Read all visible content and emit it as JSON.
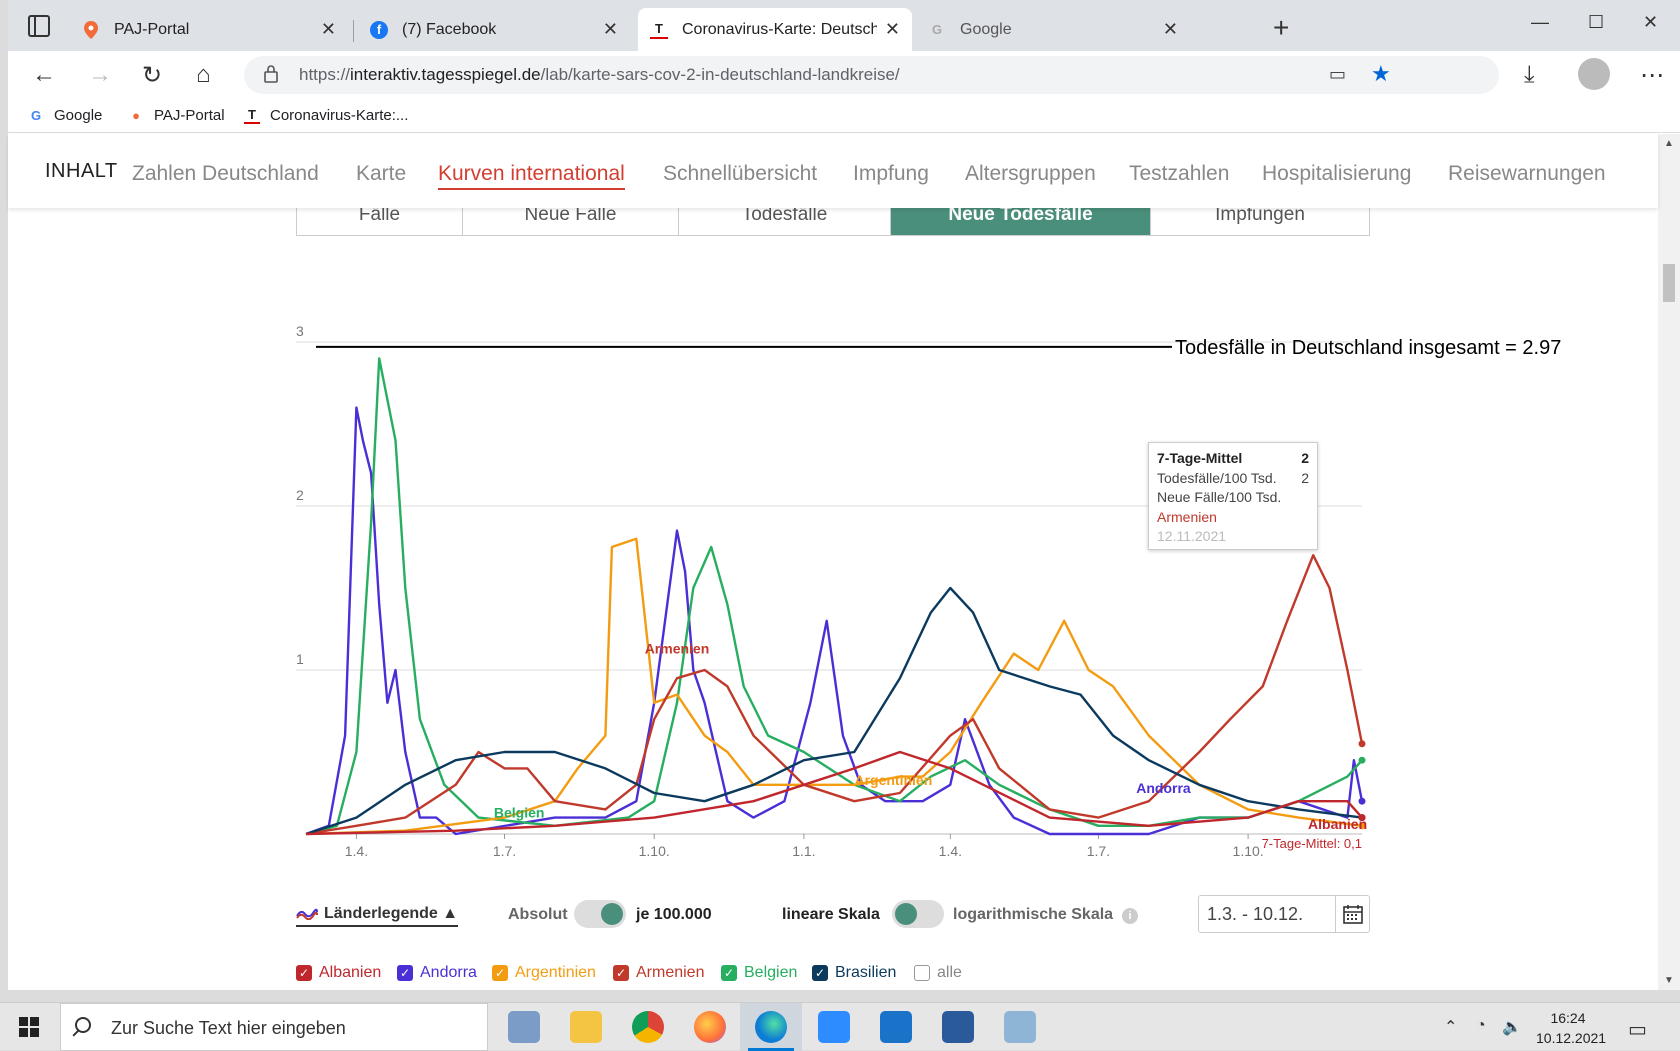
{
  "browser": {
    "tabs": [
      {
        "title": "PAJ-Portal",
        "icon": "map-pin-icon",
        "active": false
      },
      {
        "title": "(7) Facebook",
        "icon": "facebook-icon",
        "active": false
      },
      {
        "title": "Coronavirus-Karte: Deutschland",
        "icon": "tagesspiegel-icon",
        "active": true
      },
      {
        "title": "Google",
        "icon": "google-icon",
        "active": false
      }
    ],
    "url_prefix": "https://",
    "url_host": "interaktiv.tagesspiegel.de",
    "url_path": "/lab/karte-sars-cov-2-in-deutschland-landkreise/",
    "bookmarks": [
      "Google",
      "PAJ-Portal",
      "Coronavirus-Karte:..."
    ]
  },
  "site": {
    "nav_title": "INHALT",
    "nav_items": [
      "Zahlen Deutschland",
      "Karte",
      "Kurven international",
      "Schnellübersicht",
      "Impfung",
      "Altersgruppen",
      "Testzahlen",
      "Hospitalisierung",
      "Reisewarnungen"
    ],
    "active_nav": "Kurven international",
    "subtabs": [
      "Fälle",
      "Neue Fälle",
      "Todesfälle",
      "Neue Todesfälle",
      "Impfungen"
    ],
    "active_subtab": "Neue Todesfälle"
  },
  "tooltip": {
    "head_label": "7-Tage-Mittel",
    "head_value": "2",
    "row1_label": "Todesfälle/100 Tsd.",
    "row1_value": "2",
    "row2_label": "Neue Fälle/100 Tsd.",
    "country": "Armenien",
    "date": "12.11.2021"
  },
  "controls": {
    "legend_label": "Länderlegende ▲",
    "absolut": "Absolut",
    "je100000": "je 100.000",
    "linear": "lineare Skala",
    "log": "logarithmische Skala",
    "info": "i",
    "date_range": "1.3. - 10.12."
  },
  "countries": [
    {
      "name": "Albanien",
      "color": "#c0272d",
      "checked": true
    },
    {
      "name": "Andorra",
      "color": "#4b2fd6",
      "checked": true
    },
    {
      "name": "Argentinien",
      "color": "#f39c12",
      "checked": true
    },
    {
      "name": "Armenien",
      "color": "#c0392b",
      "checked": true
    },
    {
      "name": "Belgien",
      "color": "#27ae60",
      "checked": true
    },
    {
      "name": "Brasilien",
      "color": "#0b3a5e",
      "checked": true
    },
    {
      "name": "alle",
      "color": "#999999",
      "checked": false
    }
  ],
  "taskbar": {
    "search_placeholder": "Zur Suche Text hier eingeben",
    "time": "16:24",
    "date": "10.12.2021"
  },
  "chart_data": {
    "type": "line",
    "title": "",
    "xlabel": "",
    "ylabel": "",
    "ylim": [
      0,
      3
    ],
    "yticks": [
      1,
      2,
      3
    ],
    "xticks": [
      "1.4.",
      "1.7.",
      "1.10.",
      "1.1.",
      "1.4.",
      "1.7.",
      "1.10."
    ],
    "x_range": [
      "2020-03-01",
      "2021-12-10"
    ],
    "reference_line": {
      "label": "Todesfälle in Deutschland insgesamt = 2.97",
      "value": 2.97
    },
    "annotation": "7-Tage-Mittel: 0,1",
    "series_labels": [
      {
        "text": "Armenien",
        "series": "Armenien",
        "at": "2020-10-15",
        "y": 1.1
      },
      {
        "text": "Argentinien",
        "series": "Argentinien",
        "at": "2021-02-25",
        "y": 0.3
      },
      {
        "text": "Belgien",
        "series": "Belgien",
        "at": "2020-07-10",
        "y": 0.1
      },
      {
        "text": "Andorra",
        "series": "Andorra",
        "at": "2021-08-10",
        "y": 0.25
      },
      {
        "text": "Albanien",
        "series": "Albanien",
        "at": "2021-11-25",
        "y": 0.03
      }
    ],
    "series": [
      {
        "name": "Andorra",
        "color": "#4b2fd6",
        "x": [
          "2020-03-01",
          "2020-03-15",
          "2020-03-25",
          "2020-04-01",
          "2020-04-05",
          "2020-04-10",
          "2020-04-15",
          "2020-04-20",
          "2020-04-25",
          "2020-05-01",
          "2020-05-10",
          "2020-05-20",
          "2020-06-01",
          "2020-08-01",
          "2020-09-01",
          "2020-09-20",
          "2020-10-01",
          "2020-10-15",
          "2020-10-20",
          "2020-10-25",
          "2020-11-01",
          "2020-11-15",
          "2020-12-01",
          "2020-12-20",
          "2021-01-05",
          "2021-01-15",
          "2021-01-25",
          "2021-02-05",
          "2021-02-20",
          "2021-03-15",
          "2021-04-01",
          "2021-04-10",
          "2021-04-25",
          "2021-05-10",
          "2021-06-01",
          "2021-08-01",
          "2021-09-01",
          "2021-10-01",
          "2021-11-01",
          "2021-12-01",
          "2021-12-05",
          "2021-12-10"
        ],
        "y": [
          0,
          0.05,
          0.6,
          2.6,
          2.4,
          2.2,
          1.4,
          0.8,
          1.0,
          0.5,
          0.1,
          0.1,
          0,
          0.1,
          0.1,
          0.2,
          0.8,
          1.85,
          1.6,
          1.0,
          0.8,
          0.2,
          0.1,
          0.2,
          0.8,
          1.3,
          0.6,
          0.3,
          0.2,
          0.2,
          0.3,
          0.7,
          0.3,
          0.1,
          0,
          0,
          0.1,
          0.1,
          0.2,
          0.1,
          0.45,
          0.2
        ]
      },
      {
        "name": "Belgien",
        "color": "#27ae60",
        "x": [
          "2020-03-01",
          "2020-03-20",
          "2020-04-01",
          "2020-04-10",
          "2020-04-15",
          "2020-04-25",
          "2020-05-01",
          "2020-05-10",
          "2020-05-25",
          "2020-06-15",
          "2020-08-01",
          "2020-09-15",
          "2020-10-01",
          "2020-10-15",
          "2020-10-25",
          "2020-11-05",
          "2020-11-15",
          "2020-11-25",
          "2020-12-10",
          "2021-01-01",
          "2021-02-01",
          "2021-03-01",
          "2021-03-20",
          "2021-04-10",
          "2021-05-01",
          "2021-06-01",
          "2021-07-01",
          "2021-08-01",
          "2021-09-01",
          "2021-10-01",
          "2021-11-01",
          "2021-12-01",
          "2021-12-10"
        ],
        "y": [
          0,
          0.05,
          0.5,
          1.9,
          2.9,
          2.4,
          1.5,
          0.7,
          0.3,
          0.1,
          0.05,
          0.1,
          0.2,
          0.8,
          1.5,
          1.75,
          1.4,
          0.9,
          0.6,
          0.5,
          0.3,
          0.2,
          0.35,
          0.45,
          0.3,
          0.15,
          0.05,
          0.05,
          0.1,
          0.1,
          0.2,
          0.35,
          0.45
        ]
      },
      {
        "name": "Argentinien",
        "color": "#f39c12",
        "x": [
          "2020-03-01",
          "2020-05-01",
          "2020-07-01",
          "2020-08-01",
          "2020-08-15",
          "2020-09-01",
          "2020-09-05",
          "2020-09-20",
          "2020-10-01",
          "2020-10-15",
          "2020-11-01",
          "2020-11-15",
          "2020-12-01",
          "2020-12-15",
          "2021-01-01",
          "2021-02-01",
          "2021-03-01",
          "2021-03-15",
          "2021-04-01",
          "2021-04-20",
          "2021-05-10",
          "2021-05-25",
          "2021-06-10",
          "2021-06-25",
          "2021-07-10",
          "2021-08-01",
          "2021-09-01",
          "2021-10-01",
          "2021-11-01",
          "2021-12-10"
        ],
        "y": [
          0,
          0.02,
          0.1,
          0.2,
          0.4,
          0.6,
          1.75,
          1.8,
          0.8,
          0.85,
          0.6,
          0.5,
          0.3,
          0.3,
          0.3,
          0.3,
          0.35,
          0.35,
          0.5,
          0.8,
          1.1,
          1.0,
          1.3,
          1.0,
          0.9,
          0.6,
          0.3,
          0.15,
          0.1,
          0.05
        ]
      },
      {
        "name": "Armenien",
        "color": "#c0392b",
        "x": [
          "2020-03-01",
          "2020-04-01",
          "2020-05-01",
          "2020-06-01",
          "2020-06-15",
          "2020-07-01",
          "2020-07-15",
          "2020-08-01",
          "2020-09-01",
          "2020-09-20",
          "2020-10-01",
          "2020-10-15",
          "2020-11-01",
          "2020-11-15",
          "2020-12-01",
          "2021-01-01",
          "2021-02-01",
          "2021-03-01",
          "2021-04-01",
          "2021-04-15",
          "2021-05-01",
          "2021-06-01",
          "2021-07-01",
          "2021-08-01",
          "2021-09-01",
          "2021-09-20",
          "2021-10-10",
          "2021-10-25",
          "2021-11-10",
          "2021-11-20",
          "2021-12-01",
          "2021-12-10"
        ],
        "y": [
          0,
          0.05,
          0.1,
          0.3,
          0.5,
          0.4,
          0.4,
          0.2,
          0.15,
          0.3,
          0.7,
          0.95,
          1.0,
          0.9,
          0.6,
          0.3,
          0.2,
          0.25,
          0.6,
          0.7,
          0.4,
          0.15,
          0.1,
          0.2,
          0.5,
          0.7,
          0.9,
          1.3,
          1.7,
          1.5,
          1.0,
          0.55
        ]
      },
      {
        "name": "Brasilien",
        "color": "#0b3a5e",
        "x": [
          "2020-03-01",
          "2020-04-01",
          "2020-05-01",
          "2020-06-01",
          "2020-07-01",
          "2020-08-01",
          "2020-09-01",
          "2020-10-01",
          "2020-11-01",
          "2020-12-01",
          "2021-01-01",
          "2021-02-01",
          "2021-03-01",
          "2021-03-20",
          "2021-04-01",
          "2021-04-15",
          "2021-05-01",
          "2021-06-01",
          "2021-06-20",
          "2021-07-10",
          "2021-08-01",
          "2021-09-01",
          "2021-10-01",
          "2021-11-01",
          "2021-12-10"
        ],
        "y": [
          0,
          0.1,
          0.3,
          0.45,
          0.5,
          0.5,
          0.4,
          0.25,
          0.2,
          0.3,
          0.45,
          0.5,
          0.95,
          1.35,
          1.5,
          1.35,
          1.0,
          0.9,
          0.85,
          0.6,
          0.45,
          0.3,
          0.2,
          0.15,
          0.1
        ]
      },
      {
        "name": "Albanien",
        "color": "#c0272d",
        "x": [
          "2020-03-01",
          "2020-06-01",
          "2020-08-01",
          "2020-10-01",
          "2020-12-01",
          "2021-01-01",
          "2021-02-01",
          "2021-03-01",
          "2021-04-01",
          "2021-06-01",
          "2021-08-01",
          "2021-10-01",
          "2021-11-01",
          "2021-12-01",
          "2021-12-10"
        ],
        "y": [
          0,
          0.02,
          0.05,
          0.1,
          0.2,
          0.3,
          0.4,
          0.5,
          0.4,
          0.1,
          0.05,
          0.1,
          0.2,
          0.2,
          0.1
        ]
      }
    ]
  }
}
